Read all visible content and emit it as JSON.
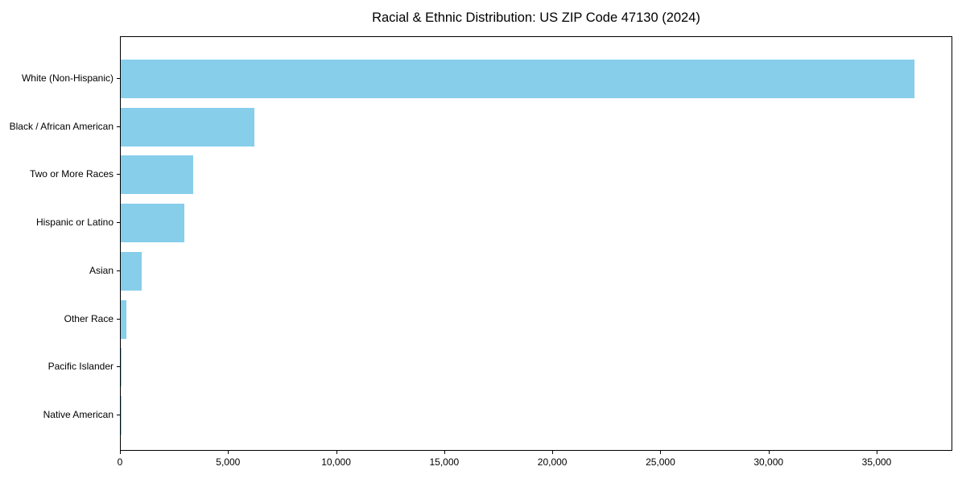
{
  "chart_data": {
    "type": "bar",
    "orientation": "horizontal",
    "title": "Racial & Ethnic Distribution: US ZIP Code 47130 (2024)",
    "categories": [
      "White (Non-Hispanic)",
      "Black / African American",
      "Two or More Races",
      "Hispanic or Latino",
      "Asian",
      "Other Race",
      "Pacific Islander",
      "Native American"
    ],
    "values": [
      36700,
      6180,
      3350,
      2950,
      960,
      250,
      30,
      20
    ],
    "xlim": [
      0,
      38500
    ],
    "xticks": [
      0,
      5000,
      10000,
      15000,
      20000,
      25000,
      30000,
      35000
    ],
    "xtick_labels": [
      "0",
      "5,000",
      "10,000",
      "15,000",
      "20,000",
      "25,000",
      "30,000",
      "35,000"
    ],
    "xlabel": "",
    "ylabel": "",
    "bar_color": "#87CEEB",
    "axis_color": "#000000",
    "text_color": "#000000",
    "background_color": "#ffffff",
    "grid": false,
    "legend": null
  }
}
